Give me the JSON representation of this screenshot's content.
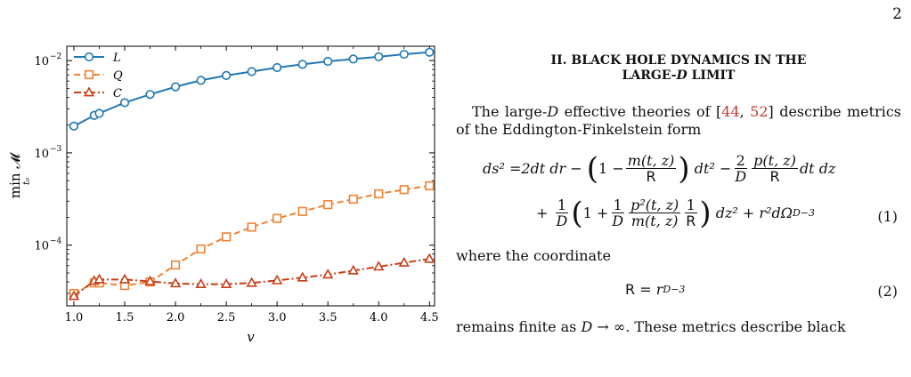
{
  "page_number": "2",
  "section": {
    "title_line1": "II.   BLACK HOLE DYNAMICS IN THE",
    "title_line2_pre": "LARGE-",
    "title_line2_var": "D",
    "title_line2_post": " LIMIT"
  },
  "paragraph1": {
    "pre": "The large-",
    "var": "D",
    "mid": " effective theories of [",
    "cite1": "44",
    "sep": ", ",
    "cite2": "52",
    "post": "] describe metrics of the Eddington-Finkelstein form"
  },
  "equation1": {
    "number": "(1)",
    "lhs": "ds² =2dt dr −",
    "one": "1 −",
    "m_num": "m(t, z)",
    "R": "R",
    "dt2": "dt² −",
    "two": "2",
    "D": "D",
    "p_num": "p(t, z)",
    "dtdz": "dt dz",
    "plus": "+",
    "one_b": "1",
    "one_plus": "1 +",
    "p2_num": "p²(t, z)",
    "m_den": "m(t, z)",
    "tail": "dz² + r²dΩ",
    "tail_sub": "D−3"
  },
  "where_text": "where the coordinate",
  "equation2": {
    "number": "(2)",
    "lhs": "R",
    "rhs": "= r",
    "exp": "D−3"
  },
  "paragraph2": {
    "pre": "remains finite as ",
    "var": "D",
    "post": " → ∞. These metrics describe black"
  },
  "chart_data": {
    "type": "line",
    "xlabel": "v",
    "ylabel": "min 𝓜",
    "ylabel_sub": "t₀",
    "yscale": "log",
    "xlim": [
      0.93,
      4.55
    ],
    "ylim": [
      2.2e-05,
      0.0143
    ],
    "x_ticks": [
      1.0,
      1.5,
      2.0,
      2.5,
      3.0,
      3.5,
      4.0,
      4.5
    ],
    "x_tick_labels": [
      "1.0",
      "1.5",
      "2.0",
      "2.5",
      "3.0",
      "3.5",
      "4.0",
      "4.5"
    ],
    "y_ticks": [
      0.0001,
      0.001,
      0.01
    ],
    "y_tick_labels": [
      "10",
      "10",
      "10"
    ],
    "y_tick_exponents": [
      "−4",
      "−3",
      "−2"
    ],
    "legend_position": "top-left",
    "series": [
      {
        "name": "L",
        "color": "#1f77b4",
        "marker": "circle",
        "dash": "solid",
        "x": [
          1.0,
          1.2,
          1.25,
          1.5,
          1.75,
          2.0,
          2.25,
          2.5,
          2.75,
          3.0,
          3.25,
          3.5,
          3.75,
          4.0,
          4.25,
          4.5
        ],
        "y": [
          0.00195,
          0.00255,
          0.00268,
          0.0035,
          0.0043,
          0.0052,
          0.0061,
          0.0069,
          0.0076,
          0.0084,
          0.0091,
          0.0098,
          0.0104,
          0.011,
          0.0117,
          0.0123
        ]
      },
      {
        "name": "Q",
        "color": "#f08232",
        "marker": "square",
        "dash": "dashed",
        "x": [
          1.0,
          1.2,
          1.25,
          1.5,
          1.75,
          2.0,
          2.25,
          2.5,
          2.75,
          3.0,
          3.25,
          3.5,
          3.75,
          4.0,
          4.25,
          4.5
        ],
        "y": [
          3e-05,
          3.9e-05,
          3.9e-05,
          3.65e-05,
          4e-05,
          6.1e-05,
          9.1e-05,
          0.000123,
          0.000157,
          0.000195,
          0.000232,
          0.000275,
          0.000315,
          0.00036,
          0.0004,
          0.00044
        ]
      },
      {
        "name": "C",
        "color": "#c63f17",
        "marker": "triangle",
        "dash": "dashdot",
        "x": [
          1.0,
          1.2,
          1.25,
          1.5,
          1.75,
          2.0,
          2.25,
          2.5,
          2.75,
          3.0,
          3.25,
          3.5,
          3.75,
          4.0,
          4.25,
          4.5
        ],
        "y": [
          2.8e-05,
          4.1e-05,
          4.25e-05,
          4.25e-05,
          4.05e-05,
          3.85e-05,
          3.78e-05,
          3.78e-05,
          3.9e-05,
          4.15e-05,
          4.45e-05,
          4.8e-05,
          5.3e-05,
          5.85e-05,
          6.45e-05,
          7.1e-05
        ]
      }
    ]
  }
}
